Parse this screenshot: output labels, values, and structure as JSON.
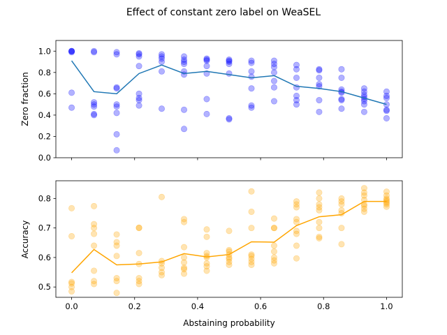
{
  "title": "Effect of constant zero label on WeaSEL",
  "colors": {
    "top_points": "#0000ff",
    "top_line": "#1f77b4",
    "bottom": "#ffa500"
  },
  "chart_data": [
    {
      "type": "scatter",
      "ylabel": "Zero fraction",
      "xlabel": "",
      "xlim": [
        -0.05,
        1.05
      ],
      "ylim": [
        0.0,
        1.1
      ],
      "yticks": [
        "0.0",
        "0.2",
        "0.4",
        "0.6",
        "0.8",
        "1.0"
      ],
      "ytick_values": [
        0,
        0.2,
        0.4,
        0.6,
        0.8,
        1.0
      ],
      "xtick_labels_shown": false,
      "grid": false,
      "scatter": [
        [
          0.0,
          1.0
        ],
        [
          0.0,
          1.0
        ],
        [
          0.0,
          1.0
        ],
        [
          0.0,
          0.99
        ],
        [
          0.0,
          0.61
        ],
        [
          0.0,
          0.47
        ],
        [
          0.071,
          1.0
        ],
        [
          0.071,
          0.99
        ],
        [
          0.071,
          0.52
        ],
        [
          0.071,
          0.5
        ],
        [
          0.071,
          0.48
        ],
        [
          0.071,
          0.41
        ],
        [
          0.071,
          0.4
        ],
        [
          0.143,
          0.99
        ],
        [
          0.143,
          0.97
        ],
        [
          0.143,
          0.66
        ],
        [
          0.143,
          0.65
        ],
        [
          0.143,
          0.5
        ],
        [
          0.143,
          0.48
        ],
        [
          0.143,
          0.42
        ],
        [
          0.143,
          0.22
        ],
        [
          0.143,
          0.07
        ],
        [
          0.214,
          0.98
        ],
        [
          0.214,
          0.97
        ],
        [
          0.214,
          0.95
        ],
        [
          0.214,
          0.86
        ],
        [
          0.214,
          0.6
        ],
        [
          0.214,
          0.56
        ],
        [
          0.214,
          0.54
        ],
        [
          0.214,
          0.49
        ],
        [
          0.286,
          0.97
        ],
        [
          0.286,
          0.95
        ],
        [
          0.286,
          0.93
        ],
        [
          0.286,
          0.9
        ],
        [
          0.286,
          0.81
        ],
        [
          0.286,
          0.46
        ],
        [
          0.357,
          0.95
        ],
        [
          0.357,
          0.92
        ],
        [
          0.357,
          0.9
        ],
        [
          0.357,
          0.88
        ],
        [
          0.357,
          0.81
        ],
        [
          0.357,
          0.78
        ],
        [
          0.357,
          0.45
        ],
        [
          0.357,
          0.27
        ],
        [
          0.429,
          0.93
        ],
        [
          0.429,
          0.92
        ],
        [
          0.429,
          0.91
        ],
        [
          0.429,
          0.86
        ],
        [
          0.429,
          0.79
        ],
        [
          0.429,
          0.55
        ],
        [
          0.429,
          0.41
        ],
        [
          0.5,
          0.92
        ],
        [
          0.5,
          0.91
        ],
        [
          0.5,
          0.9
        ],
        [
          0.5,
          0.88
        ],
        [
          0.5,
          0.79
        ],
        [
          0.5,
          0.37
        ],
        [
          0.5,
          0.36
        ],
        [
          0.571,
          0.91
        ],
        [
          0.571,
          0.89
        ],
        [
          0.571,
          0.81
        ],
        [
          0.571,
          0.76
        ],
        [
          0.571,
          0.65
        ],
        [
          0.571,
          0.49
        ],
        [
          0.571,
          0.47
        ],
        [
          0.643,
          0.91
        ],
        [
          0.643,
          0.88
        ],
        [
          0.643,
          0.85
        ],
        [
          0.643,
          0.8
        ],
        [
          0.643,
          0.72
        ],
        [
          0.643,
          0.66
        ],
        [
          0.643,
          0.53
        ],
        [
          0.714,
          0.87
        ],
        [
          0.714,
          0.83
        ],
        [
          0.714,
          0.75
        ],
        [
          0.714,
          0.66
        ],
        [
          0.714,
          0.58
        ],
        [
          0.714,
          0.54
        ],
        [
          0.714,
          0.5
        ],
        [
          0.786,
          0.83
        ],
        [
          0.786,
          0.82
        ],
        [
          0.786,
          0.75
        ],
        [
          0.786,
          0.69
        ],
        [
          0.786,
          0.67
        ],
        [
          0.786,
          0.54
        ],
        [
          0.786,
          0.43
        ],
        [
          0.857,
          0.83
        ],
        [
          0.857,
          0.75
        ],
        [
          0.857,
          0.64
        ],
        [
          0.857,
          0.62
        ],
        [
          0.857,
          0.61
        ],
        [
          0.857,
          0.55
        ],
        [
          0.857,
          0.54
        ],
        [
          0.857,
          0.46
        ],
        [
          0.929,
          0.65
        ],
        [
          0.929,
          0.62
        ],
        [
          0.929,
          0.59
        ],
        [
          0.929,
          0.57
        ],
        [
          0.929,
          0.55
        ],
        [
          0.929,
          0.53
        ],
        [
          0.929,
          0.5
        ],
        [
          0.929,
          0.43
        ],
        [
          1.0,
          0.62
        ],
        [
          1.0,
          0.58
        ],
        [
          1.0,
          0.56
        ],
        [
          1.0,
          0.5
        ],
        [
          1.0,
          0.45
        ],
        [
          1.0,
          0.44
        ],
        [
          1.0,
          0.37
        ]
      ],
      "line": {
        "x": [
          0.0,
          0.071,
          0.143,
          0.214,
          0.286,
          0.357,
          0.429,
          0.5,
          0.571,
          0.643,
          0.714,
          0.786,
          0.857,
          0.929,
          1.0
        ],
        "y": [
          0.91,
          0.62,
          0.6,
          0.79,
          0.87,
          0.79,
          0.81,
          0.78,
          0.75,
          0.77,
          0.67,
          0.65,
          0.62,
          0.56,
          0.5
        ]
      }
    },
    {
      "type": "scatter",
      "ylabel": "Accuracy",
      "xlabel": "Abstaining probability",
      "xlim": [
        -0.05,
        1.05
      ],
      "ylim": [
        0.465,
        0.86
      ],
      "yticks": [
        "0.5",
        "0.6",
        "0.7",
        "0.8"
      ],
      "ytick_values": [
        0.5,
        0.6,
        0.7,
        0.8
      ],
      "xticks": [
        "0.0",
        "0.2",
        "0.4",
        "0.6",
        "0.8",
        "1.0"
      ],
      "xtick_values": [
        0.0,
        0.2,
        0.4,
        0.6,
        0.8,
        1.0
      ],
      "grid": false,
      "scatter": [
        [
          0.0,
          0.767
        ],
        [
          0.0,
          0.672
        ],
        [
          0.0,
          0.517
        ],
        [
          0.0,
          0.512
        ],
        [
          0.0,
          0.5
        ],
        [
          0.0,
          0.485
        ],
        [
          0.071,
          0.774
        ],
        [
          0.071,
          0.713
        ],
        [
          0.071,
          0.7
        ],
        [
          0.071,
          0.68
        ],
        [
          0.071,
          0.64
        ],
        [
          0.071,
          0.555
        ],
        [
          0.071,
          0.52
        ],
        [
          0.071,
          0.51
        ],
        [
          0.143,
          0.678
        ],
        [
          0.143,
          0.652
        ],
        [
          0.143,
          0.64
        ],
        [
          0.143,
          0.605
        ],
        [
          0.143,
          0.53
        ],
        [
          0.143,
          0.52
        ],
        [
          0.143,
          0.48
        ],
        [
          0.214,
          0.701
        ],
        [
          0.214,
          0.7
        ],
        [
          0.214,
          0.615
        ],
        [
          0.214,
          0.578
        ],
        [
          0.214,
          0.53
        ],
        [
          0.214,
          0.52
        ],
        [
          0.214,
          0.51
        ],
        [
          0.286,
          0.805
        ],
        [
          0.286,
          0.588
        ],
        [
          0.286,
          0.58
        ],
        [
          0.286,
          0.565
        ],
        [
          0.286,
          0.55
        ],
        [
          0.286,
          0.54
        ],
        [
          0.357,
          0.73
        ],
        [
          0.357,
          0.72
        ],
        [
          0.357,
          0.635
        ],
        [
          0.357,
          0.6
        ],
        [
          0.357,
          0.583
        ],
        [
          0.357,
          0.565
        ],
        [
          0.357,
          0.56
        ],
        [
          0.357,
          0.545
        ],
        [
          0.429,
          0.695
        ],
        [
          0.429,
          0.67
        ],
        [
          0.429,
          0.615
        ],
        [
          0.429,
          0.605
        ],
        [
          0.429,
          0.6
        ],
        [
          0.429,
          0.58
        ],
        [
          0.429,
          0.57
        ],
        [
          0.429,
          0.555
        ],
        [
          0.5,
          0.69
        ],
        [
          0.5,
          0.625
        ],
        [
          0.5,
          0.62
        ],
        [
          0.5,
          0.61
        ],
        [
          0.5,
          0.6
        ],
        [
          0.5,
          0.595
        ],
        [
          0.5,
          0.585
        ],
        [
          0.5,
          0.575
        ],
        [
          0.571,
          0.824
        ],
        [
          0.571,
          0.755
        ],
        [
          0.571,
          0.7
        ],
        [
          0.571,
          0.61
        ],
        [
          0.571,
          0.605
        ],
        [
          0.571,
          0.595
        ],
        [
          0.571,
          0.585
        ],
        [
          0.571,
          0.575
        ],
        [
          0.643,
          0.732
        ],
        [
          0.643,
          0.7
        ],
        [
          0.643,
          0.7
        ],
        [
          0.643,
          0.64
        ],
        [
          0.643,
          0.62
        ],
        [
          0.643,
          0.6
        ],
        [
          0.643,
          0.59
        ],
        [
          0.643,
          0.58
        ],
        [
          0.714,
          0.79
        ],
        [
          0.714,
          0.78
        ],
        [
          0.714,
          0.77
        ],
        [
          0.714,
          0.73
        ],
        [
          0.714,
          0.72
        ],
        [
          0.714,
          0.69
        ],
        [
          0.714,
          0.68
        ],
        [
          0.714,
          0.64
        ],
        [
          0.714,
          0.597
        ],
        [
          0.786,
          0.82
        ],
        [
          0.786,
          0.8
        ],
        [
          0.786,
          0.78
        ],
        [
          0.786,
          0.77
        ],
        [
          0.786,
          0.76
        ],
        [
          0.786,
          0.72
        ],
        [
          0.786,
          0.7
        ],
        [
          0.786,
          0.67
        ],
        [
          0.786,
          0.665
        ],
        [
          0.857,
          0.8
        ],
        [
          0.857,
          0.79
        ],
        [
          0.857,
          0.78
        ],
        [
          0.857,
          0.76
        ],
        [
          0.857,
          0.75
        ],
        [
          0.857,
          0.7
        ],
        [
          0.857,
          0.645
        ],
        [
          0.929,
          0.835
        ],
        [
          0.929,
          0.82
        ],
        [
          0.929,
          0.81
        ],
        [
          0.929,
          0.795
        ],
        [
          0.929,
          0.78
        ],
        [
          0.929,
          0.775
        ],
        [
          0.929,
          0.765
        ],
        [
          0.929,
          0.755
        ],
        [
          1.0,
          0.823
        ],
        [
          1.0,
          0.81
        ],
        [
          1.0,
          0.8
        ],
        [
          1.0,
          0.795
        ],
        [
          1.0,
          0.79
        ],
        [
          1.0,
          0.785
        ],
        [
          1.0,
          0.78
        ],
        [
          1.0,
          0.772
        ]
      ],
      "line": {
        "x": [
          0.0,
          0.071,
          0.143,
          0.214,
          0.286,
          0.357,
          0.429,
          0.5,
          0.571,
          0.643,
          0.714,
          0.786,
          0.857,
          0.929,
          1.0
        ],
        "y": [
          0.548,
          0.627,
          0.575,
          0.578,
          0.585,
          0.613,
          0.602,
          0.61,
          0.653,
          0.652,
          0.708,
          0.738,
          0.745,
          0.79,
          0.79
        ]
      }
    }
  ]
}
